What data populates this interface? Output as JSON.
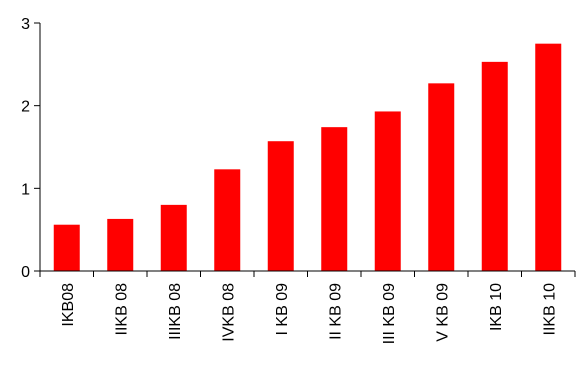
{
  "chart_data": {
    "type": "bar",
    "categories": [
      "IKB08",
      "IIKB 08",
      "IIIKB 08",
      "IVKB 08",
      "I KB 09",
      "II KB 09",
      "III KB 09",
      "V KB 09",
      "IKB 10",
      "IIKB 10"
    ],
    "values": [
      0.56,
      0.63,
      0.8,
      1.23,
      1.57,
      1.74,
      1.93,
      2.27,
      2.53,
      2.75
    ],
    "ylim": [
      0,
      3
    ],
    "yticks": [
      0,
      1,
      2,
      3
    ],
    "grid": false,
    "legend": "none",
    "colors": {
      "bar": "#ff0000",
      "axis": "#000000"
    }
  }
}
